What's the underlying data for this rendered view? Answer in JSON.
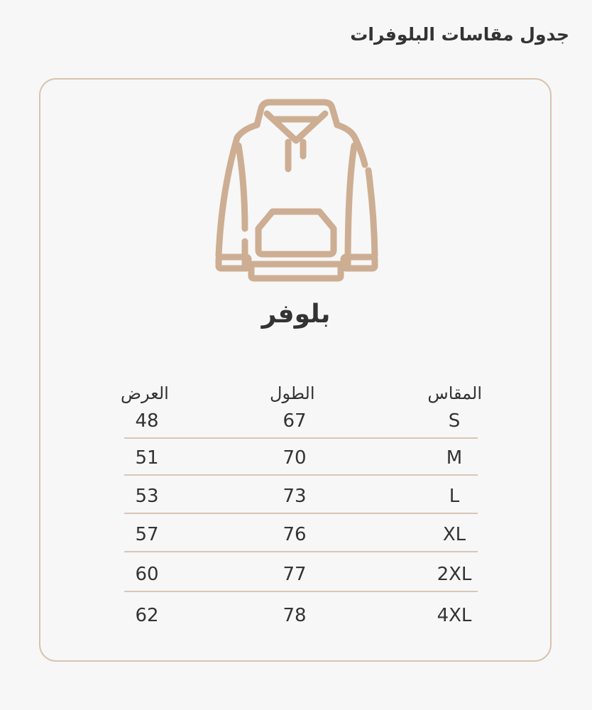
{
  "title": "جدول مقاسات البلوفرات",
  "product": {
    "name": "بلوفر",
    "icon": "hoodie-icon",
    "icon_color": "#cdae93"
  },
  "table": {
    "headers": {
      "size": "المقاس",
      "length": "الطول",
      "width": "العرض"
    },
    "rows": [
      {
        "size": "S",
        "length": "67",
        "width": "48"
      },
      {
        "size": "M",
        "length": "70",
        "width": "51"
      },
      {
        "size": "L",
        "length": "73",
        "width": "53"
      },
      {
        "size": "XL",
        "length": "76",
        "width": "57"
      },
      {
        "size": "2XL",
        "length": "77",
        "width": "60"
      },
      {
        "size": "4XL",
        "length": "78",
        "width": "62"
      }
    ]
  },
  "colors": {
    "border": "#d9c3ae",
    "accent": "#cdae93"
  }
}
